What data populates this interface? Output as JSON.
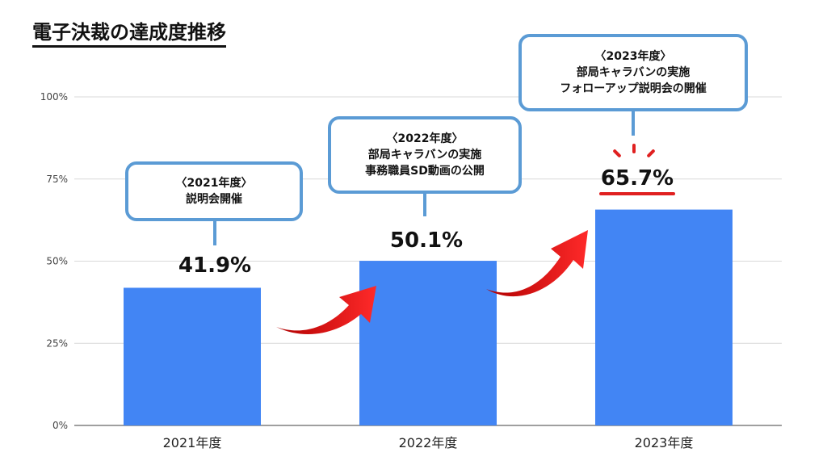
{
  "title": "電子決裁の達成度推移",
  "chart_data": {
    "type": "bar",
    "categories": [
      "2021年度",
      "2022年度",
      "2023年度"
    ],
    "values": [
      41.9,
      50.1,
      65.7
    ],
    "value_labels": [
      "41.9%",
      "50.1%",
      "65.7%"
    ],
    "ylim": [
      0,
      100
    ],
    "yticks": [
      "0%",
      "25%",
      "50%",
      "75%",
      "100%"
    ],
    "bar_color": "#4285f4",
    "grid": true
  },
  "callouts": [
    {
      "heading": "〈2021年度〉",
      "lines": [
        "説明会開催"
      ]
    },
    {
      "heading": "〈2022年度〉",
      "lines": [
        "部局キャラバンの実施",
        "事務職員SD動画の公開"
      ]
    },
    {
      "heading": "〈2023年度〉",
      "lines": [
        "部局キャラバンの実施",
        "フォローアップ説明会の開催"
      ]
    }
  ],
  "colors": {
    "callout_border": "#5b9bd5",
    "arrow": "#e02020",
    "highlight": "#e02020"
  }
}
